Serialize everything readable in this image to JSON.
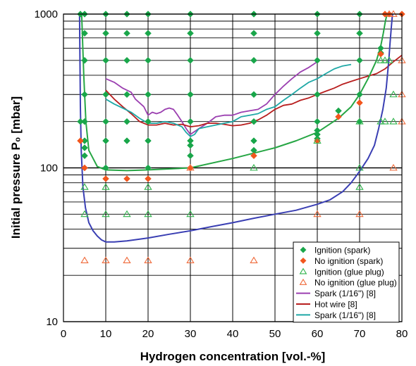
{
  "chart_data": {
    "type": "scatter",
    "xlabel": "Hydrogen concentration [vol.-%]",
    "ylabel": "Initial pressure P₀ [mbar]",
    "xlim": [
      0,
      80
    ],
    "ylim": [
      10,
      1000
    ],
    "y_scale": "log",
    "x_ticks": [
      0,
      10,
      20,
      30,
      40,
      50,
      60,
      70,
      80
    ],
    "y_ticks": [
      10,
      100,
      1000
    ],
    "grid": true,
    "legend_position": "bottom-right",
    "colors": {
      "ignition_spark": "#19a64a",
      "no_ignition_spark": "#f2561d",
      "ignition_glue": "#2fb34b",
      "no_ignition_glue": "#ef6a3a",
      "spark_purple": "#9b3fb0",
      "hot_wire": "#b81e1e",
      "spark_teal": "#1fa8a6",
      "green_curve": "#26a644",
      "blue_curve": "#3a3fb3"
    },
    "series": [
      {
        "name": "Ignition (spark)",
        "kind": "points",
        "marker": "diamond-filled",
        "color_key": "ignition_spark",
        "points": [
          [
            4,
            1000
          ],
          [
            5,
            1000
          ],
          [
            10,
            1000
          ],
          [
            15,
            1000
          ],
          [
            20,
            1000
          ],
          [
            30,
            1000
          ],
          [
            45,
            1000
          ],
          [
            60,
            1000
          ],
          [
            70,
            1000
          ],
          [
            5,
            750
          ],
          [
            10,
            750
          ],
          [
            15,
            750
          ],
          [
            20,
            750
          ],
          [
            30,
            750
          ],
          [
            45,
            750
          ],
          [
            60,
            750
          ],
          [
            70,
            750
          ],
          [
            5,
            500
          ],
          [
            10,
            500
          ],
          [
            15,
            500
          ],
          [
            20,
            500
          ],
          [
            30,
            500
          ],
          [
            45,
            500
          ],
          [
            60,
            500
          ],
          [
            70,
            500
          ],
          [
            5,
            300
          ],
          [
            10,
            300
          ],
          [
            15,
            300
          ],
          [
            20,
            300
          ],
          [
            30,
            300
          ],
          [
            45,
            300
          ],
          [
            60,
            300
          ],
          [
            70,
            300
          ],
          [
            4,
            200
          ],
          [
            5,
            200
          ],
          [
            10,
            200
          ],
          [
            15,
            200
          ],
          [
            20,
            200
          ],
          [
            30,
            200
          ],
          [
            45,
            200
          ],
          [
            60,
            200
          ],
          [
            70,
            200
          ],
          [
            5,
            150
          ],
          [
            10,
            150
          ],
          [
            15,
            150
          ],
          [
            20,
            150
          ],
          [
            30,
            150
          ],
          [
            45,
            150
          ],
          [
            60,
            175
          ],
          [
            60,
            165
          ],
          [
            65,
            235
          ],
          [
            75,
            600
          ],
          [
            75,
            560
          ],
          [
            76,
            1000
          ],
          [
            5,
            135
          ],
          [
            5,
            120
          ],
          [
            30,
            140
          ],
          [
            30,
            120
          ],
          [
            45,
            130
          ],
          [
            10,
            100
          ],
          [
            20,
            100
          ],
          [
            30,
            100
          ],
          [
            60,
            155
          ]
        ]
      },
      {
        "name": "No ignition (spark)",
        "kind": "points",
        "marker": "diamond-filled",
        "color_key": "no_ignition_spark",
        "points": [
          [
            4,
            150
          ],
          [
            5,
            100
          ],
          [
            10,
            85
          ],
          [
            15,
            85
          ],
          [
            20,
            85
          ],
          [
            30,
            100
          ],
          [
            45,
            120
          ],
          [
            60,
            150
          ],
          [
            65,
            215
          ],
          [
            70,
            265
          ],
          [
            75,
            550
          ],
          [
            76,
            1000
          ],
          [
            77,
            1000
          ],
          [
            80,
            1000
          ]
        ]
      },
      {
        "name": "Ignition (glue plug)",
        "kind": "points",
        "marker": "triangle-open",
        "color_key": "ignition_glue",
        "points": [
          [
            5,
            75
          ],
          [
            10,
            75
          ],
          [
            20,
            75
          ],
          [
            5,
            50
          ],
          [
            10,
            50
          ],
          [
            15,
            50
          ],
          [
            20,
            50
          ],
          [
            30,
            50
          ],
          [
            45,
            100
          ],
          [
            60,
            150
          ],
          [
            70,
            200
          ],
          [
            70,
            100
          ],
          [
            70,
            75
          ],
          [
            75,
            500
          ],
          [
            76,
            500
          ],
          [
            75,
            200
          ],
          [
            76,
            200
          ],
          [
            78,
            300
          ],
          [
            78,
            200
          ],
          [
            77,
            500
          ]
        ]
      },
      {
        "name": "No ignition (glue plug)",
        "kind": "points",
        "marker": "triangle-open",
        "color_key": "no_ignition_glue",
        "points": [
          [
            5,
            25
          ],
          [
            10,
            25
          ],
          [
            15,
            25
          ],
          [
            20,
            25
          ],
          [
            30,
            25
          ],
          [
            45,
            25
          ],
          [
            30,
            100
          ],
          [
            60,
            50
          ],
          [
            70,
            50
          ],
          [
            78,
            100
          ],
          [
            80,
            200
          ],
          [
            80,
            300
          ],
          [
            80,
            500
          ],
          [
            78,
            1000
          ],
          [
            77,
            1000
          ]
        ]
      },
      {
        "name": "Spark (1/16\") [8]",
        "kind": "line",
        "color_key": "spark_purple",
        "x": [
          10,
          12,
          14,
          16,
          17,
          19,
          20,
          21,
          22,
          23,
          24,
          25,
          26,
          27,
          28,
          29,
          30,
          32,
          34,
          36,
          38,
          40,
          42,
          44,
          46,
          48,
          50,
          52,
          54,
          56,
          58,
          60
        ],
        "y": [
          380,
          360,
          330,
          310,
          280,
          250,
          220,
          230,
          225,
          230,
          240,
          245,
          240,
          220,
          200,
          180,
          165,
          180,
          195,
          215,
          220,
          220,
          230,
          235,
          240,
          260,
          300,
          340,
          380,
          420,
          450,
          490
        ]
      },
      {
        "name": "Hot wire [8]",
        "kind": "line",
        "color_key": "hot_wire",
        "x": [
          10,
          12,
          14,
          16,
          18,
          20,
          22,
          24,
          26,
          28,
          30,
          32,
          34,
          36,
          38,
          40,
          42,
          44,
          46,
          48,
          50,
          52,
          54,
          56,
          58,
          60,
          62,
          64,
          66,
          68,
          70,
          72,
          74,
          76,
          78,
          80
        ],
        "y": [
          320,
          280,
          250,
          225,
          200,
          190,
          190,
          195,
          190,
          192,
          185,
          188,
          195,
          195,
          192,
          188,
          190,
          195,
          205,
          220,
          240,
          255,
          260,
          275,
          285,
          300,
          315,
          330,
          350,
          365,
          380,
          395,
          410,
          440,
          490,
          540
        ]
      },
      {
        "name": "Spark (1/16\") [8]",
        "kind": "line",
        "color_key": "spark_teal",
        "x": [
          10,
          12,
          14,
          16,
          18,
          20,
          22,
          24,
          26,
          28,
          29,
          30,
          31,
          32,
          34,
          36,
          38,
          40,
          42,
          44,
          46,
          48,
          50,
          52,
          54,
          56,
          58,
          60,
          62,
          64,
          66,
          68
        ],
        "y": [
          280,
          260,
          245,
          230,
          210,
          195,
          195,
          200,
          195,
          185,
          170,
          160,
          165,
          180,
          185,
          190,
          195,
          200,
          215,
          220,
          225,
          240,
          250,
          275,
          300,
          330,
          360,
          380,
          410,
          440,
          460,
          470
        ]
      },
      {
        "name": "",
        "kind": "line",
        "color_key": "green_curve",
        "x": [
          4.3,
          4.8,
          5.3,
          6,
          8,
          10,
          15,
          20,
          30,
          40,
          50,
          55,
          60,
          65,
          68,
          70,
          72,
          74,
          75,
          75.6,
          76.1,
          76.5
        ],
        "y": [
          1000,
          400,
          200,
          130,
          102,
          97,
          96,
          97,
          100,
          115,
          135,
          150,
          170,
          210,
          250,
          300,
          380,
          500,
          620,
          750,
          900,
          1000
        ]
      },
      {
        "name": "",
        "kind": "line",
        "color_key": "blue_curve",
        "x": [
          3.8,
          3.9,
          4,
          4.2,
          4.6,
          5.2,
          6,
          7,
          8,
          9,
          10,
          12,
          15,
          20,
          25,
          30,
          35,
          40,
          45,
          50,
          55,
          60,
          63,
          66,
          68,
          70,
          72,
          73.5,
          74.5,
          75.5,
          76.3,
          76.9,
          77.2,
          77.5,
          77.7,
          77.8
        ],
        "y": [
          1000,
          500,
          250,
          130,
          75,
          55,
          44,
          39,
          36,
          34,
          33,
          33,
          33.5,
          35,
          37,
          39,
          41.5,
          44,
          47,
          50,
          53,
          58,
          62,
          70,
          80,
          95,
          115,
          140,
          180,
          240,
          330,
          500,
          650,
          820,
          950,
          1000
        ]
      }
    ],
    "legend": [
      {
        "label": "Ignition (spark)",
        "marker": "diamond-filled",
        "color_key": "ignition_spark"
      },
      {
        "label": "No ignition (spark)",
        "marker": "diamond-filled",
        "color_key": "no_ignition_spark"
      },
      {
        "label": "Ignition (glue plug)",
        "marker": "triangle-open",
        "color_key": "ignition_glue"
      },
      {
        "label": "No ignition (glue plug)",
        "marker": "triangle-open",
        "color_key": "no_ignition_glue"
      },
      {
        "label": "Spark (1/16\") [8]",
        "marker": "line",
        "color_key": "spark_purple"
      },
      {
        "label": "Hot wire [8]",
        "marker": "line",
        "color_key": "hot_wire"
      },
      {
        "label": "Spark (1/16\") [8]",
        "marker": "line",
        "color_key": "spark_teal"
      }
    ]
  }
}
